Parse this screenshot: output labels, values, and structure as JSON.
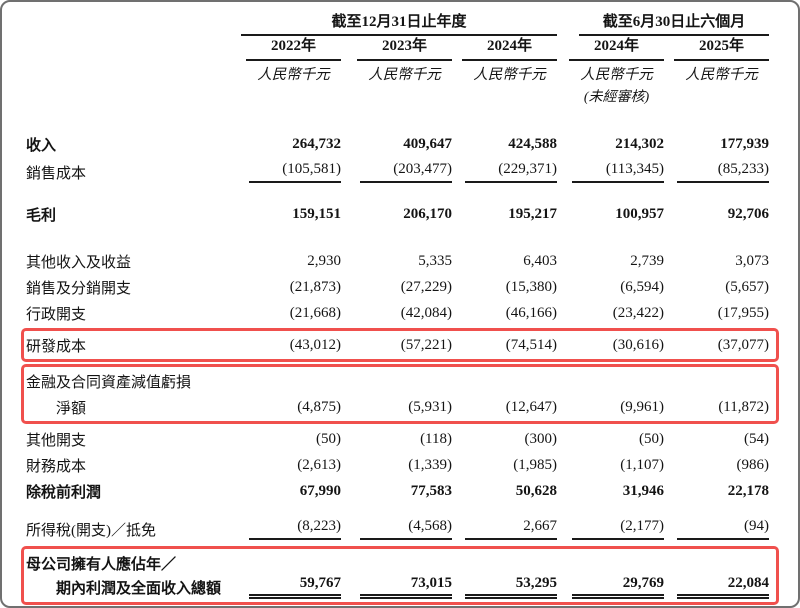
{
  "page": {
    "background": "#ffffff",
    "border_color": "#707070",
    "highlight_color": "#f0504d",
    "text_color": "#141414"
  },
  "header": {
    "group_annual": "截至12月31日止年度",
    "group_interim": "截至6月30日止六個月",
    "columns": [
      {
        "year": "2022年",
        "unit": "人民幣千元",
        "note": ""
      },
      {
        "year": "2023年",
        "unit": "人民幣千元",
        "note": ""
      },
      {
        "year": "2024年",
        "unit": "人民幣千元",
        "note": ""
      },
      {
        "year": "2024年",
        "unit": "人民幣千元",
        "note": "(未經審核)"
      },
      {
        "year": "2025年",
        "unit": "人民幣千元",
        "note": ""
      }
    ]
  },
  "rows": [
    {
      "label": "收入",
      "values": [
        "264,732",
        "409,647",
        "424,588",
        "214,302",
        "177,939"
      ],
      "bold": true
    },
    {
      "label": "銷售成本",
      "values": [
        "(105,581)",
        "(203,477)",
        "(229,371)",
        "(113,345)",
        "(85,233)"
      ],
      "underline": true
    },
    {
      "label": "毛利",
      "values": [
        "159,151",
        "206,170",
        "195,217",
        "100,957",
        "92,706"
      ],
      "bold": true
    },
    {
      "label": "其他收入及收益",
      "values": [
        "2,930",
        "5,335",
        "6,403",
        "2,739",
        "3,073"
      ]
    },
    {
      "label": "銷售及分銷開支",
      "values": [
        "(21,873)",
        "(27,229)",
        "(15,380)",
        "(6,594)",
        "(5,657)"
      ]
    },
    {
      "label": "行政開支",
      "values": [
        "(21,668)",
        "(42,084)",
        "(46,166)",
        "(23,422)",
        "(17,955)"
      ]
    },
    {
      "label": "研發成本",
      "values": [
        "(43,012)",
        "(57,221)",
        "(74,514)",
        "(30,616)",
        "(37,077)"
      ],
      "highlighted": true
    },
    {
      "label_line1": "金融及合同資產減值虧損",
      "label_line2": "淨額",
      "values": [
        "(4,875)",
        "(5,931)",
        "(12,647)",
        "(9,961)",
        "(11,872)"
      ],
      "highlighted": true
    },
    {
      "label": "其他開支",
      "values": [
        "(50)",
        "(118)",
        "(300)",
        "(50)",
        "(54)"
      ]
    },
    {
      "label": "財務成本",
      "values": [
        "(2,613)",
        "(1,339)",
        "(1,985)",
        "(1,107)",
        "(986)"
      ]
    },
    {
      "label": "除稅前利潤",
      "values": [
        "67,990",
        "77,583",
        "50,628",
        "31,946",
        "22,178"
      ],
      "bold": true
    },
    {
      "label": "所得稅(開支)／抵免",
      "values": [
        "(8,223)",
        "(4,568)",
        "2,667",
        "(2,177)",
        "(94)"
      ],
      "underline": true
    },
    {
      "label_line1": "母公司擁有人應佔年／",
      "label_line2": "期內利潤及全面收入總額",
      "values": [
        "59,767",
        "73,015",
        "53,295",
        "29,769",
        "22,084"
      ],
      "bold": true,
      "highlighted": true,
      "double_underline": true
    }
  ]
}
